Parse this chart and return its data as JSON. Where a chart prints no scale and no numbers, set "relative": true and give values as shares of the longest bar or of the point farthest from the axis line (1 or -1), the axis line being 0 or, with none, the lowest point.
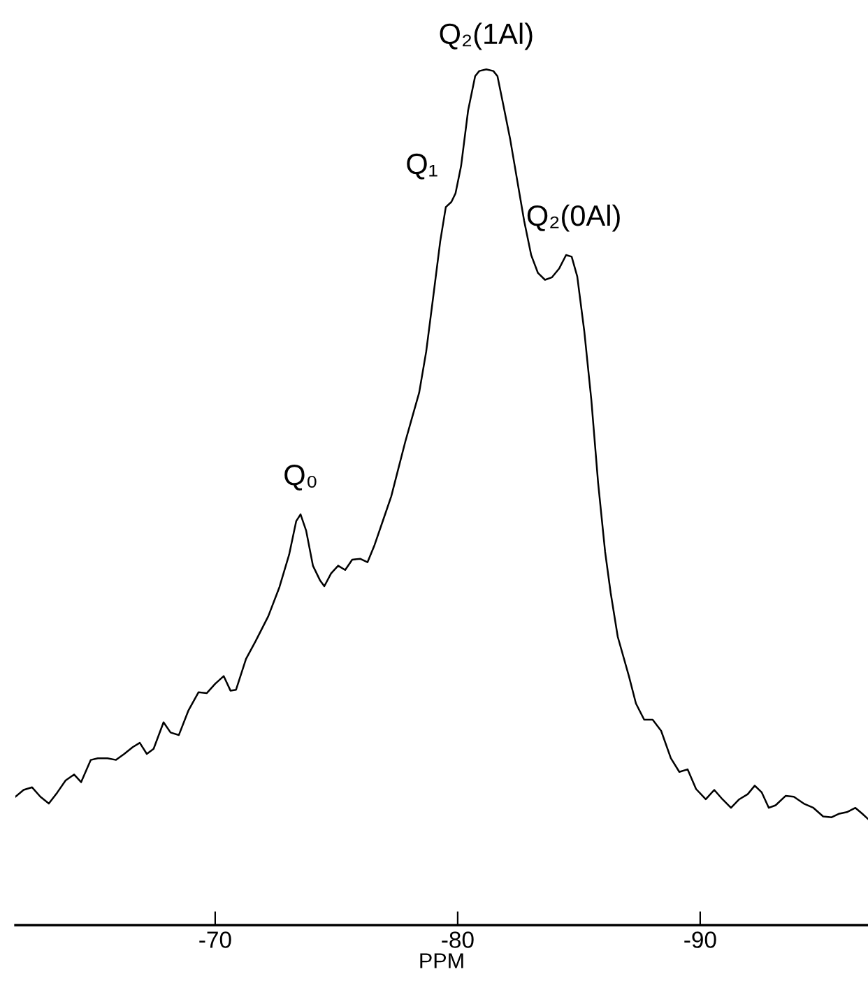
{
  "chart_data": {
    "type": "line",
    "relative": true,
    "xlabel": "PPM",
    "xlim": [
      -61.76,
      -96.92
    ],
    "xticks": [
      -70,
      -80,
      -90
    ],
    "grid": false,
    "legend": false,
    "marker": "none",
    "line_style": "solid",
    "annotations": [
      {
        "text": "Q₀",
        "x": -73.52,
        "y": 0.48
      },
      {
        "text": "Q₁",
        "x": -79.51,
        "y": 0.839
      },
      {
        "text": "Q₂(1Al)",
        "x": -81.18,
        "y": 1.0
      },
      {
        "text": "Q₂(0Al)",
        "x": -84.47,
        "y": 0.783
      }
    ],
    "x": [
      -61.76,
      -62.1,
      -62.45,
      -62.79,
      -63.14,
      -63.49,
      -63.83,
      -64.18,
      -64.47,
      -64.87,
      -65.16,
      -65.56,
      -65.91,
      -66.25,
      -66.6,
      -66.89,
      -67.18,
      -67.46,
      -67.87,
      -68.16,
      -68.5,
      -68.9,
      -69.31,
      -69.65,
      -70.0,
      -70.35,
      -70.63,
      -70.86,
      -71.27,
      -71.67,
      -72.19,
      -72.65,
      -73.05,
      -73.34,
      -73.52,
      -73.75,
      -74.03,
      -74.32,
      -74.5,
      -74.78,
      -75.07,
      -75.36,
      -75.65,
      -75.99,
      -76.28,
      -76.57,
      -76.97,
      -77.26,
      -77.55,
      -77.84,
      -78.13,
      -78.41,
      -78.7,
      -78.99,
      -79.28,
      -79.51,
      -79.74,
      -79.91,
      -80.14,
      -80.43,
      -80.72,
      -80.89,
      -81.18,
      -81.47,
      -81.64,
      -81.87,
      -82.16,
      -82.45,
      -82.74,
      -83.03,
      -83.31,
      -83.6,
      -83.89,
      -84.18,
      -84.47,
      -84.7,
      -84.93,
      -85.22,
      -85.51,
      -85.79,
      -86.08,
      -86.31,
      -86.6,
      -87.06,
      -87.35,
      -87.69,
      -88.04,
      -88.39,
      -88.79,
      -89.14,
      -89.48,
      -89.83,
      -90.23,
      -90.58,
      -90.92,
      -91.27,
      -91.61,
      -91.96,
      -92.25,
      -92.54,
      -92.83,
      -93.11,
      -93.52,
      -93.86,
      -94.27,
      -94.67,
      -95.07,
      -95.42,
      -95.71,
      -96.05,
      -96.4,
      -96.69,
      -96.92
    ],
    "series": [
      {
        "color": "#000000",
        "values": [
          0.15,
          0.158,
          0.161,
          0.15,
          0.142,
          0.155,
          0.169,
          0.176,
          0.167,
          0.193,
          0.195,
          0.195,
          0.193,
          0.2,
          0.208,
          0.213,
          0.2,
          0.206,
          0.237,
          0.225,
          0.222,
          0.251,
          0.272,
          0.271,
          0.282,
          0.291,
          0.274,
          0.275,
          0.311,
          0.332,
          0.361,
          0.395,
          0.433,
          0.472,
          0.48,
          0.461,
          0.42,
          0.403,
          0.396,
          0.411,
          0.42,
          0.415,
          0.427,
          0.428,
          0.424,
          0.444,
          0.477,
          0.501,
          0.533,
          0.565,
          0.594,
          0.622,
          0.67,
          0.734,
          0.799,
          0.839,
          0.845,
          0.855,
          0.887,
          0.952,
          0.992,
          0.998,
          1.0,
          0.998,
          0.992,
          0.96,
          0.919,
          0.871,
          0.823,
          0.783,
          0.762,
          0.754,
          0.757,
          0.767,
          0.783,
          0.781,
          0.758,
          0.694,
          0.614,
          0.517,
          0.436,
          0.388,
          0.337,
          0.291,
          0.259,
          0.24,
          0.24,
          0.227,
          0.195,
          0.179,
          0.182,
          0.159,
          0.147,
          0.158,
          0.147,
          0.137,
          0.147,
          0.153,
          0.163,
          0.155,
          0.137,
          0.14,
          0.151,
          0.15,
          0.142,
          0.137,
          0.127,
          0.126,
          0.13,
          0.132,
          0.137,
          0.13,
          0.124
        ]
      }
    ]
  }
}
